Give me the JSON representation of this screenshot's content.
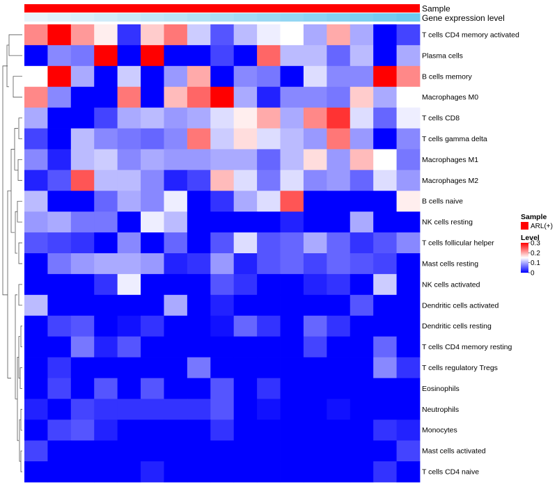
{
  "chart_data": {
    "type": "heatmap",
    "title": "",
    "annotations": [
      {
        "name": "Sample",
        "kind": "categorical",
        "value": "ARL(+)",
        "color": "#ff0000"
      },
      {
        "name": "Gene expression level",
        "kind": "continuous",
        "color_low": "#e8f4fb",
        "color_high": "#6cc8f0"
      }
    ],
    "rows": [
      "T cells CD4 memory activated",
      "Plasma cells",
      "B cells memory",
      "Macrophages M0",
      "T cells CD8",
      "T cells gamma delta",
      "Macrophages M1",
      "Macrophages M2",
      "B cells naive",
      "NK cells resting",
      "T cells follicular helper",
      "Mast cells resting",
      "NK cells activated",
      "Dendritic cells activated",
      "Dendritic cells resting",
      "T cells CD4 memory resting",
      "T cells regulatory  Tregs",
      "Eosinophils",
      "Neutrophils",
      "Monocytes",
      "Mast cells activated",
      "T cells CD4 naive"
    ],
    "n_columns": 17,
    "values": [
      [
        0.22,
        0.3,
        0.21,
        0.16,
        0.03,
        0.18,
        0.23,
        0.12,
        0.05,
        0.11,
        0.14,
        0.15,
        0.1,
        0.2,
        0.1,
        0.0,
        0.04
      ],
      [
        0.0,
        0.08,
        0.07,
        0.3,
        0.0,
        0.3,
        0.0,
        0.0,
        0.04,
        0.0,
        0.24,
        0.11,
        0.11,
        0.06,
        0.11,
        0.0,
        0.1
      ],
      [
        0.15,
        0.3,
        0.1,
        0.0,
        0.12,
        0.0,
        0.09,
        0.2,
        0.0,
        0.08,
        0.07,
        0.0,
        0.13,
        0.08,
        0.08,
        0.3,
        0.22
      ],
      [
        0.22,
        0.08,
        0.0,
        0.0,
        0.23,
        0.0,
        0.19,
        0.24,
        0.3,
        0.1,
        0.02,
        0.08,
        0.08,
        0.07,
        0.18,
        0.1,
        0.15
      ],
      [
        0.1,
        0.0,
        0.0,
        0.04,
        0.1,
        0.11,
        0.09,
        0.1,
        0.13,
        0.16,
        0.2,
        0.1,
        0.22,
        0.27,
        0.13,
        0.06,
        0.14
      ],
      [
        0.04,
        0.0,
        0.11,
        0.08,
        0.07,
        0.06,
        0.08,
        0.23,
        0.12,
        0.17,
        0.13,
        0.11,
        0.09,
        0.23,
        0.09,
        0.0,
        0.08
      ],
      [
        0.08,
        0.02,
        0.11,
        0.12,
        0.08,
        0.1,
        0.09,
        0.09,
        0.1,
        0.1,
        0.06,
        0.11,
        0.17,
        0.09,
        0.19,
        0.15,
        0.07
      ],
      [
        0.02,
        0.05,
        0.25,
        0.11,
        0.11,
        0.08,
        0.02,
        0.04,
        0.19,
        0.13,
        0.07,
        0.13,
        0.08,
        0.09,
        0.06,
        0.13,
        0.09
      ],
      [
        0.11,
        0.0,
        0.0,
        0.06,
        0.1,
        0.08,
        0.14,
        0.0,
        0.03,
        0.1,
        0.13,
        0.25,
        0.0,
        0.0,
        0.0,
        0.0,
        0.16
      ],
      [
        0.09,
        0.1,
        0.07,
        0.07,
        0.0,
        0.14,
        0.11,
        0.0,
        0.0,
        0.0,
        0.0,
        0.02,
        0.0,
        0.0,
        0.1,
        0.0,
        0.0
      ],
      [
        0.05,
        0.04,
        0.03,
        0.0,
        0.08,
        0.0,
        0.06,
        0.0,
        0.05,
        0.13,
        0.05,
        0.06,
        0.1,
        0.06,
        0.03,
        0.05,
        0.08
      ],
      [
        0.0,
        0.07,
        0.09,
        0.1,
        0.1,
        0.09,
        0.02,
        0.03,
        0.09,
        0.02,
        0.05,
        0.06,
        0.04,
        0.06,
        0.05,
        0.04,
        0.0
      ],
      [
        0.0,
        0.0,
        0.0,
        0.03,
        0.14,
        0.0,
        0.0,
        0.0,
        0.05,
        0.03,
        0.0,
        0.0,
        0.02,
        0.03,
        0.0,
        0.12,
        0.0
      ],
      [
        0.11,
        0.0,
        0.0,
        0.0,
        0.0,
        0.0,
        0.1,
        0.0,
        0.02,
        0.0,
        0.0,
        0.0,
        0.0,
        0.0,
        0.05,
        0.0,
        0.0
      ],
      [
        0.0,
        0.04,
        0.05,
        0.0,
        0.01,
        0.03,
        0.0,
        0.0,
        0.01,
        0.06,
        0.03,
        0.0,
        0.06,
        0.03,
        0.0,
        0.0,
        0.0
      ],
      [
        0.0,
        0.0,
        0.07,
        0.02,
        0.05,
        0.0,
        0.0,
        0.0,
        0.0,
        0.0,
        0.0,
        0.0,
        0.04,
        0.0,
        0.0,
        0.06,
        0.0
      ],
      [
        0.0,
        0.03,
        0.0,
        0.0,
        0.0,
        0.0,
        0.0,
        0.07,
        0.0,
        0.0,
        0.0,
        0.0,
        0.0,
        0.0,
        0.0,
        0.08,
        0.03
      ],
      [
        0.0,
        0.04,
        0.0,
        0.05,
        0.0,
        0.05,
        0.0,
        0.0,
        0.05,
        0.0,
        0.03,
        0.0,
        0.0,
        0.0,
        0.0,
        0.0,
        0.0
      ],
      [
        0.02,
        0.0,
        0.04,
        0.03,
        0.03,
        0.03,
        0.03,
        0.03,
        0.05,
        0.0,
        0.01,
        0.0,
        0.0,
        0.01,
        0.0,
        0.0,
        0.0
      ],
      [
        0.0,
        0.04,
        0.05,
        0.02,
        0.0,
        0.0,
        0.0,
        0.0,
        0.03,
        0.0,
        0.0,
        0.0,
        0.0,
        0.0,
        0.0,
        0.03,
        0.02
      ],
      [
        0.04,
        0.0,
        0.0,
        0.0,
        0.0,
        0.0,
        0.0,
        0.0,
        0.0,
        0.0,
        0.0,
        0.0,
        0.0,
        0.0,
        0.0,
        0.0,
        0.04
      ],
      [
        0.0,
        0.0,
        0.0,
        0.0,
        0.0,
        0.02,
        0.0,
        0.0,
        0.0,
        0.0,
        0.0,
        0.0,
        0.0,
        0.0,
        0.0,
        0.03,
        0.0
      ]
    ],
    "color_scale": {
      "low": "#0000ff",
      "mid": "#ffffff",
      "high": "#ff0000",
      "min": 0,
      "mid_value": 0.15,
      "max": 0.3
    },
    "legend": {
      "position": "right",
      "sample_title": "Sample",
      "sample_entry": "ARL(+)",
      "level_title": "Level",
      "level_ticks": [
        "0.3",
        "0.2",
        "0.1",
        "0"
      ]
    },
    "row_dendrogram": true,
    "column_dendrogram": false
  }
}
